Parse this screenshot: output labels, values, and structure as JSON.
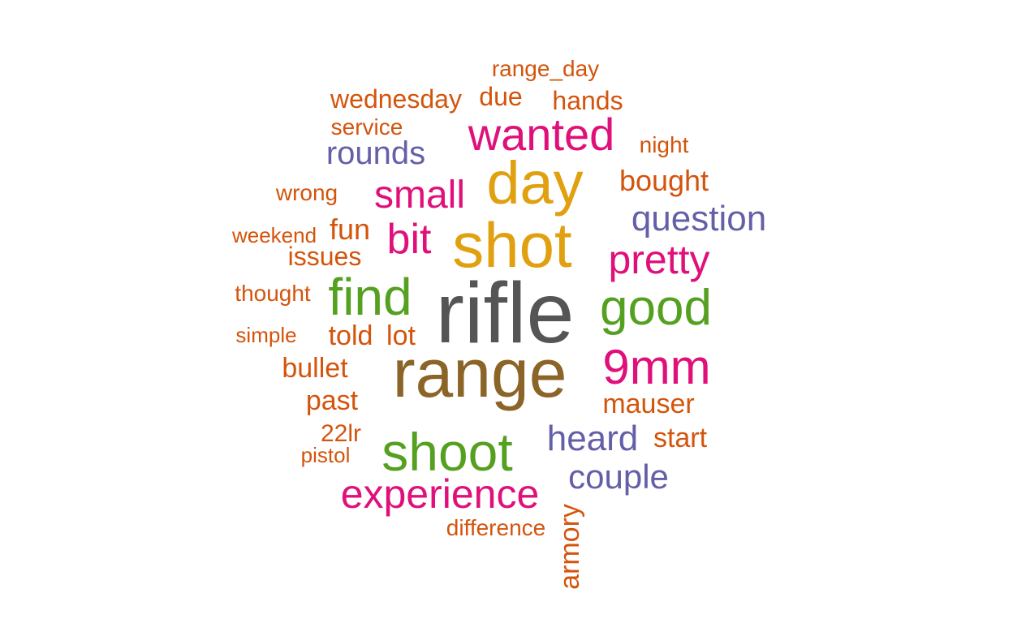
{
  "palette": {
    "dark_gray": "#555555",
    "brown": "#8B6428",
    "gold": "#E0A010",
    "green": "#55A020",
    "magenta": "#E0107A",
    "purple": "#6460A8",
    "orange": "#D4540C"
  },
  "words": [
    {
      "text": "rifle",
      "color": "#555555"
    },
    {
      "text": "range",
      "color": "#8B6428"
    },
    {
      "text": "shot",
      "color": "#E0A010"
    },
    {
      "text": "day",
      "color": "#E0A010"
    },
    {
      "text": "shoot",
      "color": "#55A020"
    },
    {
      "text": "find",
      "color": "#55A020"
    },
    {
      "text": "good",
      "color": "#55A020"
    },
    {
      "text": "9mm",
      "color": "#E0107A"
    },
    {
      "text": "wanted",
      "color": "#E0107A"
    },
    {
      "text": "experience",
      "color": "#E0107A"
    },
    {
      "text": "small",
      "color": "#E0107A"
    },
    {
      "text": "bit",
      "color": "#E0107A"
    },
    {
      "text": "pretty",
      "color": "#E0107A"
    },
    {
      "text": "question",
      "color": "#6460A8"
    },
    {
      "text": "heard",
      "color": "#6460A8"
    },
    {
      "text": "couple",
      "color": "#6460A8"
    },
    {
      "text": "rounds",
      "color": "#6460A8"
    },
    {
      "text": "mauser",
      "color": "#D4540C"
    },
    {
      "text": "bought",
      "color": "#D4540C"
    },
    {
      "text": "start",
      "color": "#D4540C"
    },
    {
      "text": "past",
      "color": "#D4540C"
    },
    {
      "text": "bullet",
      "color": "#D4540C"
    },
    {
      "text": "told",
      "color": "#D4540C"
    },
    {
      "text": "lot",
      "color": "#D4540C"
    },
    {
      "text": "fun",
      "color": "#D4540C"
    },
    {
      "text": "issues",
      "color": "#D4540C"
    },
    {
      "text": "hands",
      "color": "#D4540C"
    },
    {
      "text": "wednesday",
      "color": "#D4540C"
    },
    {
      "text": "due",
      "color": "#D4540C"
    },
    {
      "text": "range_day",
      "color": "#D4540C"
    },
    {
      "text": "service",
      "color": "#D4540C"
    },
    {
      "text": "night",
      "color": "#D4540C"
    },
    {
      "text": "wrong",
      "color": "#D4540C"
    },
    {
      "text": "weekend",
      "color": "#D4540C"
    },
    {
      "text": "thought",
      "color": "#D4540C"
    },
    {
      "text": "simple",
      "color": "#D4540C"
    },
    {
      "text": "22lr",
      "color": "#D4540C"
    },
    {
      "text": "pistol",
      "color": "#D4540C"
    },
    {
      "text": "difference",
      "color": "#D4540C"
    },
    {
      "text": "armory",
      "color": "#D4540C"
    }
  ]
}
